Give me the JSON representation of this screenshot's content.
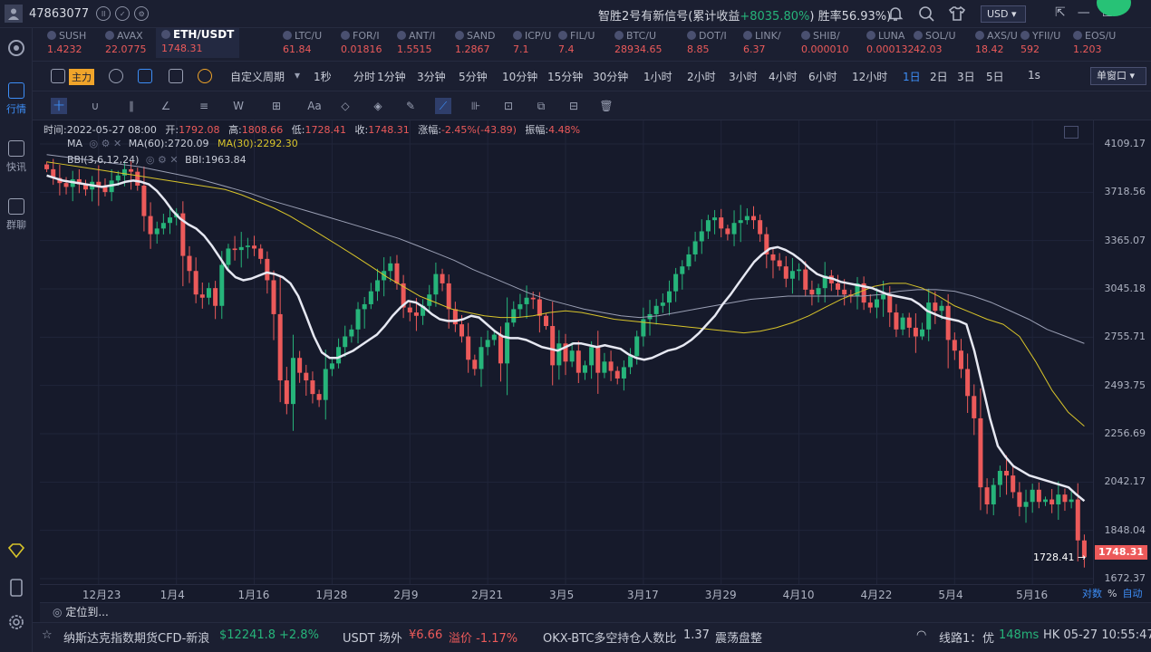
{
  "topbar": {
    "user_id": "47863077",
    "notice_prefix": "智胜2号有新信号(累计收益",
    "notice_gain": "+8035.80%",
    "notice_mid": ")",
    "notice_winrate": "胜率56.93%)",
    "currency": "USD ▾"
  },
  "sidebar": {
    "items": [
      {
        "label": "行情"
      },
      {
        "label": "快讯"
      },
      {
        "label": "群聊"
      }
    ]
  },
  "tickers": [
    {
      "name": "SUSH",
      "price": "1.4232"
    },
    {
      "name": "AVAX",
      "price": "22.0775"
    },
    {
      "name": "ETH/USDT",
      "price": "1748.31"
    },
    {
      "name": "LTC/U",
      "price": "61.84"
    },
    {
      "name": "FOR/I",
      "price": "0.01816"
    },
    {
      "name": "ANT/I",
      "price": "1.5515"
    },
    {
      "name": "SAND",
      "price": "1.2867"
    },
    {
      "name": "ICP/U",
      "price": "7.1"
    },
    {
      "name": "FIL/U",
      "price": "7.4"
    },
    {
      "name": "BTC/U",
      "price": "28934.65"
    },
    {
      "name": "DOT/I",
      "price": "8.85"
    },
    {
      "name": "LINK/",
      "price": "6.37"
    },
    {
      "name": "SHIB/",
      "price": "0.000010"
    },
    {
      "name": "LUNA",
      "price": "0.000132"
    },
    {
      "name": "SOL/U",
      "price": "42.03"
    },
    {
      "name": "AXS/U",
      "price": "18.42"
    },
    {
      "name": "YFII/U",
      "price": "592"
    },
    {
      "name": "EOS/U",
      "price": "1.203"
    }
  ],
  "toolbar": {
    "main_label": "主力",
    "custom_period": "自定义周期",
    "periods": [
      "1秒",
      "分时",
      "1分钟",
      "3分钟",
      "5分钟",
      "10分钟",
      "15分钟",
      "30分钟",
      "1小时",
      "2小时",
      "3小时",
      "4小时",
      "6小时",
      "12小时",
      "1日",
      "2日",
      "3日",
      "5日"
    ],
    "active_period": "1日",
    "right_small": "1s",
    "window_mode": "单窗口 ▾"
  },
  "drawtools": [
    "十",
    "∪",
    "∥",
    "∠",
    "≡",
    "W",
    "⊞",
    "Aa",
    "◇",
    "◈",
    "✎",
    "⟋",
    "⊪",
    "⊡",
    "⧉",
    "⊟",
    "🗑"
  ],
  "chart_info": {
    "time_label": "时间:",
    "time": "2022-05-27 08:00",
    "open_label": "开:",
    "open": "1792.08",
    "high_label": "高:",
    "high": "1808.66",
    "low_label": "低:",
    "low": "1728.41",
    "close_label": "收:",
    "close": "1748.31",
    "change_label": "涨幅:",
    "change": "-2.45%(-43.89)",
    "amp_label": "振幅:",
    "amp": "4.48%",
    "ma_name": "MA",
    "ma60": "MA(60):2720.09",
    "ma30": "MA(30):2292.30",
    "bbi_name": "BBI(3,6,12,24)",
    "bbi_value": "BBI:1963.84",
    "low_marker": "1728.41 →",
    "current_price": "1748.31"
  },
  "chart_data": {
    "type": "candlestick",
    "title": "",
    "symbol": "ETH/USDT",
    "interval": "1日",
    "ylim": [
      1672.37,
      4250
    ],
    "y_ticks": [
      "4109.17",
      "3718.56",
      "3365.07",
      "3045.18",
      "2755.71",
      "2493.75",
      "2256.69",
      "2042.17",
      "1848.04",
      "1672.37"
    ],
    "log_scale": true,
    "x_ticks": [
      "12月23",
      "1月4",
      "1月16",
      "1月28",
      "2月9",
      "2月21",
      "3月5",
      "3月17",
      "3月29",
      "4月10",
      "4月22",
      "5月4",
      "5月16"
    ],
    "x_tick_index": [
      8,
      20,
      32,
      44,
      56,
      68,
      80,
      92,
      104,
      116,
      128,
      140,
      152
    ],
    "colors": {
      "up": "#26b47a",
      "down": "#ec5a5a",
      "bbi": "#e6e8f2",
      "ma30": "#d8c42a",
      "ma60": "#9a9fb4"
    },
    "candles_close": [
      3900,
      3830,
      3790,
      3760,
      3820,
      3780,
      3740,
      3800,
      3760,
      3720,
      3810,
      3850,
      3900,
      3880,
      3770,
      3540,
      3410,
      3450,
      3490,
      3530,
      3560,
      3260,
      3160,
      3010,
      2990,
      3050,
      2940,
      3200,
      3310,
      3300,
      3320,
      3330,
      3310,
      3240,
      3100,
      2890,
      2520,
      2400,
      2640,
      2560,
      2520,
      2450,
      2420,
      2580,
      2610,
      2700,
      2760,
      2800,
      2920,
      2950,
      3030,
      3100,
      3160,
      3210,
      3080,
      2930,
      2900,
      2880,
      2940,
      3010,
      3140,
      3080,
      2920,
      2830,
      2760,
      2630,
      2580,
      2700,
      2740,
      2770,
      2610,
      2840,
      2920,
      2950,
      2990,
      2980,
      2880,
      2820,
      2600,
      2720,
      2620,
      2680,
      2560,
      2600,
      2700,
      2560,
      2620,
      2570,
      2530,
      2590,
      2650,
      2760,
      2860,
      2890,
      2940,
      2960,
      3030,
      3140,
      3190,
      3270,
      3360,
      3430,
      3510,
      3530,
      3450,
      3410,
      3490,
      3510,
      3540,
      3510,
      3410,
      3270,
      3230,
      3190,
      3110,
      3160,
      3170,
      3040,
      3010,
      3050,
      3130,
      3080,
      3040,
      3010,
      3000,
      3080,
      2960,
      2930,
      2980,
      3010,
      2900,
      2800,
      2870,
      2810,
      2760,
      2800,
      2960,
      2910,
      2940,
      2740,
      2680,
      2580,
      2440,
      2330,
      2020,
      1950,
      2030,
      2090,
      2070,
      2000,
      1940,
      1960,
      2010,
      1960,
      1970,
      1950,
      1990,
      1960,
      1970,
      1810,
      1748.31
    ],
    "bbi": [
      3850,
      3830,
      3810,
      3800,
      3790,
      3780,
      3770,
      3760,
      3770,
      3780,
      3800,
      3810,
      3800,
      3780,
      3730,
      3660,
      3580,
      3520,
      3480,
      3450,
      3400,
      3330,
      3250,
      3170,
      3120,
      3100,
      3110,
      3130,
      3150,
      3140,
      3120,
      3080,
      3000,
      2880,
      2760,
      2670,
      2640,
      2640,
      2660,
      2680,
      2710,
      2740,
      2770,
      2820,
      2880,
      2930,
      2970,
      2960,
      2930,
      2890,
      2860,
      2850,
      2850,
      2860,
      2880,
      2870,
      2830,
      2790,
      2760,
      2750,
      2750,
      2740,
      2720,
      2700,
      2690,
      2680,
      2700,
      2720,
      2720,
      2710,
      2700,
      2710,
      2700,
      2690,
      2660,
      2640,
      2630,
      2640,
      2660,
      2680,
      2690,
      2710,
      2740,
      2780,
      2830,
      2880,
      2950,
      3010,
      3080,
      3150,
      3220,
      3270,
      3310,
      3320,
      3300,
      3270,
      3230,
      3180,
      3140,
      3120,
      3110,
      3090,
      3080,
      3070,
      3060,
      3050,
      3030,
      3010,
      3000,
      2990,
      2980,
      2950,
      2910,
      2890,
      2870,
      2860,
      2850,
      2830,
      2680,
      2500,
      2330,
      2200,
      2150,
      2110,
      2090,
      2070,
      2060,
      2050,
      2040,
      2030,
      2020,
      1990,
      1963.84
    ],
    "ma30": [
      3960,
      3940,
      3920,
      3900,
      3880,
      3860,
      3840,
      3820,
      3800,
      3780,
      3760,
      3740,
      3700,
      3650,
      3600,
      3540,
      3470,
      3400,
      3330,
      3260,
      3190,
      3120,
      3060,
      3000,
      2960,
      2920,
      2900,
      2880,
      2870,
      2870,
      2880,
      2900,
      2910,
      2900,
      2880,
      2860,
      2850,
      2840,
      2830,
      2820,
      2810,
      2800,
      2790,
      2780,
      2790,
      2810,
      2840,
      2880,
      2930,
      2980,
      3020,
      3060,
      3080,
      3080,
      3050,
      3000,
      2940,
      2900,
      2860,
      2830,
      2760,
      2620,
      2470,
      2360,
      2292.3
    ],
    "ma60": [
      4020,
      4000,
      3980,
      3960,
      3940,
      3920,
      3890,
      3860,
      3830,
      3790,
      3750,
      3710,
      3660,
      3620,
      3580,
      3540,
      3500,
      3460,
      3420,
      3380,
      3330,
      3280,
      3230,
      3170,
      3120,
      3070,
      3020,
      2980,
      2950,
      2920,
      2900,
      2880,
      2870,
      2880,
      2900,
      2920,
      2940,
      2960,
      2980,
      2990,
      3000,
      3000,
      3000,
      3000,
      3000,
      3010,
      3030,
      3040,
      3040,
      3030,
      3000,
      2960,
      2910,
      2860,
      2800,
      2760,
      2720.09
    ]
  },
  "xaxis_right": {
    "mode": "对数",
    "pct": "%",
    "auto": "自动"
  },
  "locate_label": "定位到...",
  "statusbar": {
    "nasdaq_label": "纳斯达克指数期货CFD-新浪",
    "nasdaq_value": "$12241.8",
    "nasdaq_change": "+2.8%",
    "usdt_label": "USDT 场外",
    "usdt_value": "¥6.66",
    "usdt_premium": "溢价 -1.17%",
    "okx_label": "OKX-BTC多空持仓人数比",
    "okx_value": "1.37",
    "okx_state": "震荡盘整",
    "line_label": "线路1：",
    "line_quality": "优",
    "line_ping": "148ms",
    "clock": "HK 05-27 10:55:47"
  }
}
